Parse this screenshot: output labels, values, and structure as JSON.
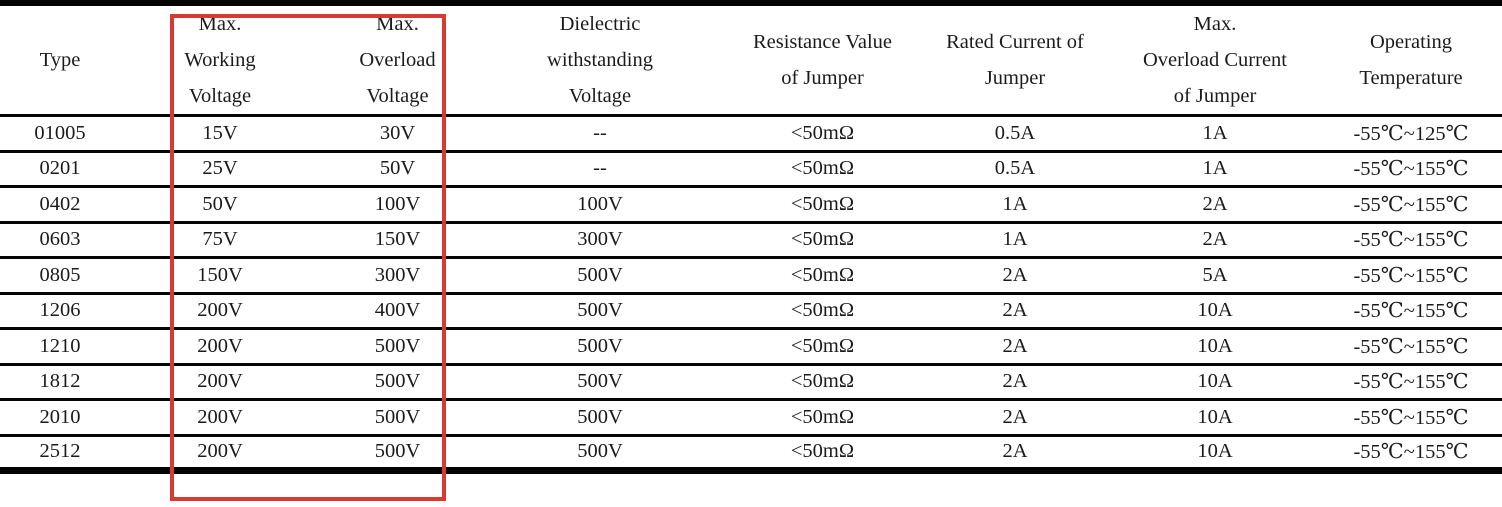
{
  "table": {
    "headers": [
      "Type",
      "Max.\nWorking\nVoltage",
      "Max.\nOverload\nVoltage",
      "Dielectric\nwithstanding\nVoltage",
      "Resistance Value\nof Jumper",
      "Rated Current of\nJumper",
      "Max.\nOverload Current\nof Jumper",
      "Operating\nTemperature"
    ],
    "rows": [
      [
        "01005",
        "15V",
        "30V",
        "--",
        "<50mΩ",
        "0.5A",
        "1A",
        "-55℃~125℃"
      ],
      [
        "0201",
        "25V",
        "50V",
        "--",
        "<50mΩ",
        "0.5A",
        "1A",
        "-55℃~155℃"
      ],
      [
        "0402",
        "50V",
        "100V",
        "100V",
        "<50mΩ",
        "1A",
        "2A",
        "-55℃~155℃"
      ],
      [
        "0603",
        "75V",
        "150V",
        "300V",
        "<50mΩ",
        "1A",
        "2A",
        "-55℃~155℃"
      ],
      [
        "0805",
        "150V",
        "300V",
        "500V",
        "<50mΩ",
        "2A",
        "5A",
        "-55℃~155℃"
      ],
      [
        "1206",
        "200V",
        "400V",
        "500V",
        "<50mΩ",
        "2A",
        "10A",
        "-55℃~155℃"
      ],
      [
        "1210",
        "200V",
        "500V",
        "500V",
        "<50mΩ",
        "2A",
        "10A",
        "-55℃~155℃"
      ],
      [
        "1812",
        "200V",
        "500V",
        "500V",
        "<50mΩ",
        "2A",
        "10A",
        "-55℃~155℃"
      ],
      [
        "2010",
        "200V",
        "500V",
        "500V",
        "<50mΩ",
        "2A",
        "10A",
        "-55℃~155℃"
      ],
      [
        "2512",
        "200V",
        "500V",
        "500V",
        "<50mΩ",
        "2A",
        "10A",
        "-55℃~155℃"
      ]
    ]
  },
  "highlight": {
    "color": "#d93a30",
    "note": "red rectangle around Max. Working Voltage and Max. Overload Voltage columns"
  }
}
